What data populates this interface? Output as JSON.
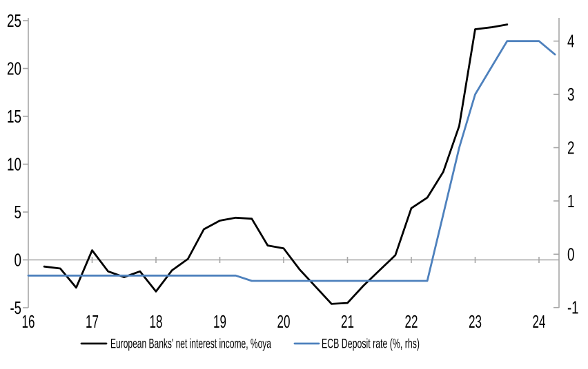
{
  "page": {
    "background": "#ffffff"
  },
  "chart_data": {
    "type": "line",
    "title": "",
    "x_axis": {
      "labels": [
        "16",
        "17",
        "18",
        "19",
        "20",
        "21",
        "22",
        "23",
        "24"
      ]
    },
    "left_axis": {
      "labels": [
        "25",
        "20",
        "15",
        "10",
        "5",
        "0",
        "-5"
      ],
      "values": [
        25,
        20,
        15,
        10,
        5,
        0,
        -5
      ],
      "range": [
        -5,
        25.3
      ]
    },
    "right_axis": {
      "labels": [
        "4",
        "3",
        "2",
        "1",
        "0",
        "-1"
      ],
      "values": [
        4,
        3,
        2,
        1,
        0,
        -1
      ],
      "range": [
        -1.07,
        4.43
      ]
    },
    "grid": "zero-line-only",
    "colors": {
      "axis": "#a6a6a6",
      "text": "#000000"
    },
    "legend_position": "bottom",
    "series": [
      {
        "id": "nii",
        "name": "European Banks' net interest income, %oya",
        "axis": "left",
        "color": "#000000",
        "points": [
          [
            "2016Q2",
            -0.7
          ],
          [
            "2016Q3",
            -0.9
          ],
          [
            "2016Q4",
            -2.9
          ],
          [
            "2017Q1",
            1.0
          ],
          [
            "2017Q2",
            -1.2
          ],
          [
            "2017Q3",
            -1.8
          ],
          [
            "2017Q4",
            -1.2
          ],
          [
            "2018Q1",
            -3.3
          ],
          [
            "2018Q2",
            -1.1
          ],
          [
            "2018Q3",
            0.1
          ],
          [
            "2018Q4",
            3.2
          ],
          [
            "2019Q1",
            4.1
          ],
          [
            "2019Q2",
            4.4
          ],
          [
            "2019Q3",
            4.3
          ],
          [
            "2019Q4",
            1.5
          ],
          [
            "2020Q1",
            1.2
          ],
          [
            "2020Q2",
            -1.0
          ],
          [
            "2020Q3",
            -2.8
          ],
          [
            "2020Q4",
            -4.6
          ],
          [
            "2021Q1",
            -4.5
          ],
          [
            "2021Q2",
            -2.7
          ],
          [
            "2021Q3",
            -1.1
          ],
          [
            "2021Q4",
            0.5
          ],
          [
            "2022Q1",
            5.4
          ],
          [
            "2022Q2",
            6.5
          ],
          [
            "2022Q3",
            9.2
          ],
          [
            "2022Q4",
            14.0
          ],
          [
            "2023Q1",
            24.1
          ],
          [
            "2023Q2",
            24.3
          ],
          [
            "2023Q3",
            24.6
          ]
        ]
      },
      {
        "id": "ecb",
        "name": "ECB Deposit rate (%, rhs)",
        "axis": "right",
        "color": "#4e81bd",
        "points": [
          [
            "2016Q1",
            -0.4
          ],
          [
            "2016Q2",
            -0.4
          ],
          [
            "2016Q3",
            -0.4
          ],
          [
            "2016Q4",
            -0.4
          ],
          [
            "2017Q1",
            -0.4
          ],
          [
            "2017Q2",
            -0.4
          ],
          [
            "2017Q3",
            -0.4
          ],
          [
            "2017Q4",
            -0.4
          ],
          [
            "2018Q1",
            -0.4
          ],
          [
            "2018Q2",
            -0.4
          ],
          [
            "2018Q3",
            -0.4
          ],
          [
            "2018Q4",
            -0.4
          ],
          [
            "2019Q1",
            -0.4
          ],
          [
            "2019Q2",
            -0.4
          ],
          [
            "2019Q3",
            -0.5
          ],
          [
            "2019Q4",
            -0.5
          ],
          [
            "2020Q1",
            -0.5
          ],
          [
            "2020Q2",
            -0.5
          ],
          [
            "2020Q3",
            -0.5
          ],
          [
            "2020Q4",
            -0.5
          ],
          [
            "2021Q1",
            -0.5
          ],
          [
            "2021Q2",
            -0.5
          ],
          [
            "2021Q3",
            -0.5
          ],
          [
            "2021Q4",
            -0.5
          ],
          [
            "2022Q1",
            -0.5
          ],
          [
            "2022Q2",
            -0.5
          ],
          [
            "2022Q3",
            0.75
          ],
          [
            "2022Q4",
            2.0
          ],
          [
            "2023Q1",
            3.0
          ],
          [
            "2023Q2",
            3.5
          ],
          [
            "2023Q3",
            4.0
          ],
          [
            "2023Q4",
            4.0
          ],
          [
            "2024Q1",
            4.0
          ],
          [
            "2024Q2",
            3.75
          ]
        ]
      }
    ]
  }
}
